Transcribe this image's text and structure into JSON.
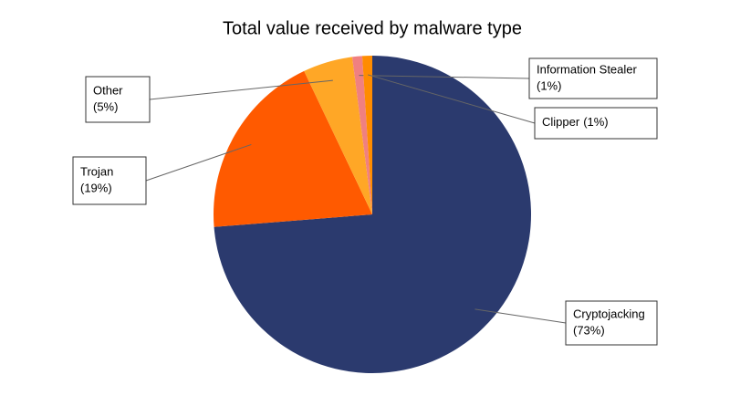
{
  "chart_data": {
    "type": "pie",
    "title": "Total value received by malware type",
    "categories": [
      "Cryptojacking",
      "Trojan",
      "Other",
      "Information Stealer",
      "Clipper"
    ],
    "values": [
      73,
      19,
      5,
      1,
      1
    ],
    "value_labels": [
      "(73%)",
      "(19%)",
      "(5%)",
      "(1%)",
      "(1%)"
    ],
    "colors": [
      "#2b3a6e",
      "#ff5a00",
      "#ffa726",
      "#f08080",
      "#ff8c00"
    ]
  }
}
